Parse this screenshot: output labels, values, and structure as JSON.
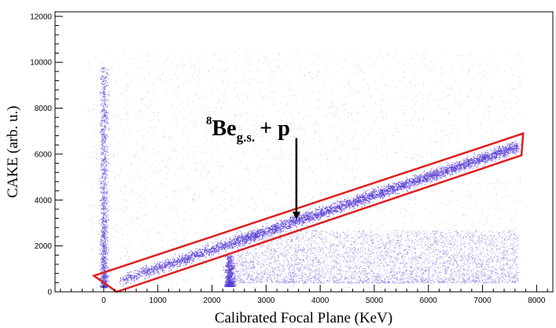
{
  "chart_data": {
    "type": "scatter",
    "title": "",
    "xlabel": "Calibrated Focal Plane (KeV)",
    "ylabel": "CAKE (arb. u.)",
    "xlim": [
      -900,
      8300
    ],
    "ylim": [
      0,
      12200
    ],
    "xticks": [
      0,
      1000,
      2000,
      3000,
      4000,
      5000,
      6000,
      7000,
      8000
    ],
    "yticks": [
      0,
      2000,
      4000,
      6000,
      8000,
      10000,
      12000
    ],
    "grid": false,
    "point_color": "#5a3fd6",
    "gate_color": "#e01e1e",
    "bands": [
      {
        "label": "locus",
        "x_start": 300,
        "y_start": 500,
        "x_end": 7650,
        "y_end": 6350
      },
      {
        "label": "vertical band near zero",
        "x": 0,
        "y_min": 200,
        "y_max": 9800
      },
      {
        "label": "cluster near 2300 keV",
        "x": 2320,
        "y_min": 250,
        "y_max": 1600
      },
      {
        "label": "diffuse lower region",
        "x_min": 2400,
        "x_max": 7650,
        "y_min": 400,
        "y_max": 2700
      }
    ],
    "gate_polygon": [
      {
        "x": -180,
        "y": 700
      },
      {
        "x": 7750,
        "y": 6900
      },
      {
        "x": 7720,
        "y": 5950
      },
      {
        "x": 240,
        "y": 0
      }
    ],
    "annotation": {
      "mass_number": "8",
      "element": "Be",
      "state": "g.s.",
      "rest": "+  p",
      "arrow_from": {
        "x": 3560,
        "y": 6700
      },
      "arrow_to": {
        "x": 3560,
        "y": 3150
      }
    }
  }
}
